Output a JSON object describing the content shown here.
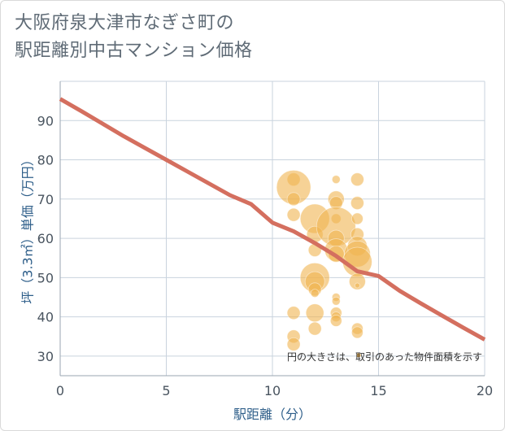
{
  "title_lines": [
    "大阪府泉大津市なぎさ町の",
    "駅距離別中古マンション価格"
  ],
  "chart_data": {
    "type": "scatter",
    "xlabel": "駅距離（分）",
    "ylabel": "坪（3.3㎡）単価（万円）",
    "xlim": [
      0,
      20
    ],
    "ylim": [
      25,
      100
    ],
    "x_ticks": [
      0,
      5,
      10,
      15,
      20
    ],
    "y_ticks": [
      30,
      40,
      50,
      60,
      70,
      80,
      90
    ],
    "grid": true,
    "annotation": "円の大きさは、取引のあった物件面積を示す",
    "points": [
      {
        "x": 11,
        "y": 75,
        "s": 8
      },
      {
        "x": 11,
        "y": 73,
        "s": 21
      },
      {
        "x": 11,
        "y": 70,
        "s": 8
      },
      {
        "x": 11,
        "y": 66,
        "s": 8
      },
      {
        "x": 11,
        "y": 41,
        "s": 8
      },
      {
        "x": 11,
        "y": 35,
        "s": 8
      },
      {
        "x": 11,
        "y": 33,
        "s": 8
      },
      {
        "x": 12,
        "y": 65,
        "s": 18
      },
      {
        "x": 12,
        "y": 61,
        "s": 10
      },
      {
        "x": 12,
        "y": 57,
        "s": 8
      },
      {
        "x": 12,
        "y": 50,
        "s": 18
      },
      {
        "x": 12,
        "y": 49,
        "s": 12
      },
      {
        "x": 12,
        "y": 47,
        "s": 8
      },
      {
        "x": 12,
        "y": 46,
        "s": 5
      },
      {
        "x": 12,
        "y": 41,
        "s": 11
      },
      {
        "x": 12,
        "y": 37,
        "s": 8
      },
      {
        "x": 13,
        "y": 75,
        "s": 5
      },
      {
        "x": 13,
        "y": 70,
        "s": 10
      },
      {
        "x": 13,
        "y": 69,
        "s": 8
      },
      {
        "x": 13,
        "y": 65,
        "s": 6
      },
      {
        "x": 13,
        "y": 63,
        "s": 24
      },
      {
        "x": 13,
        "y": 60,
        "s": 10
      },
      {
        "x": 13,
        "y": 57,
        "s": 14
      },
      {
        "x": 13,
        "y": 56,
        "s": 10
      },
      {
        "x": 13,
        "y": 45,
        "s": 5
      },
      {
        "x": 13,
        "y": 44,
        "s": 5
      },
      {
        "x": 13,
        "y": 41,
        "s": 7
      },
      {
        "x": 13,
        "y": 40,
        "s": 6
      },
      {
        "x": 13,
        "y": 39,
        "s": 7
      },
      {
        "x": 14,
        "y": 75,
        "s": 8
      },
      {
        "x": 14,
        "y": 69,
        "s": 8
      },
      {
        "x": 14,
        "y": 65,
        "s": 7
      },
      {
        "x": 14,
        "y": 61,
        "s": 8
      },
      {
        "x": 14,
        "y": 58,
        "s": 12
      },
      {
        "x": 14,
        "y": 56,
        "s": 16
      },
      {
        "x": 14,
        "y": 54,
        "s": 18
      },
      {
        "x": 14,
        "y": 49,
        "s": 10
      },
      {
        "x": 14,
        "y": 48,
        "s": 3
      },
      {
        "x": 14,
        "y": 37,
        "s": 7
      },
      {
        "x": 14,
        "y": 36,
        "s": 7
      }
    ],
    "trend_line": {
      "x": [
        0,
        1,
        2,
        3,
        4,
        5,
        6,
        7,
        8,
        9,
        10,
        11,
        12,
        13,
        14,
        15,
        16,
        17,
        18,
        19,
        20
      ],
      "y": [
        95.5,
        92.4,
        89.2,
        86.0,
        83.0,
        80.0,
        77.0,
        74.0,
        71.0,
        68.7,
        64.0,
        61.8,
        58.8,
        55.5,
        51.6,
        50.4,
        46.6,
        43.4,
        40.3,
        37.2,
        34.2
      ]
    },
    "colors": {
      "bubble": "#f0b450",
      "line": "#d46f5f",
      "grid": "#c9d3de"
    }
  }
}
